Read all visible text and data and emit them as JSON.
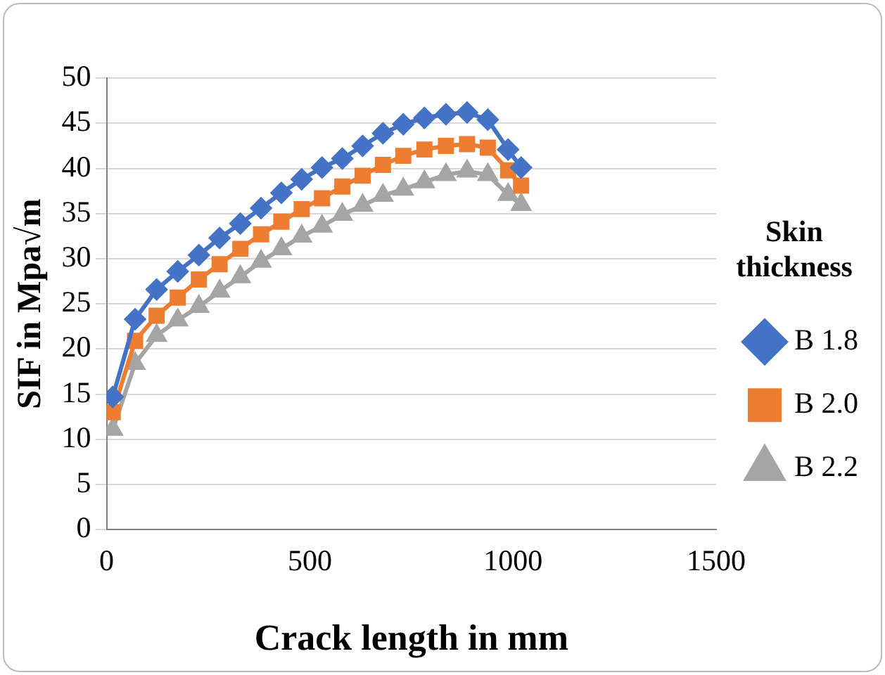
{
  "chart_data": {
    "type": "line",
    "xlabel": "Crack length in mm",
    "ylabel": "SIF in Mpa√m",
    "legend_title": "Skin thickness",
    "x": [
      15,
      70,
      123,
      175,
      227,
      278,
      329,
      380,
      430,
      480,
      530,
      580,
      630,
      680,
      730,
      782,
      835,
      887,
      938,
      988,
      1020
    ],
    "series": [
      {
        "name": "B 1.8",
        "color": "#4472c4",
        "marker": "diamond",
        "values": [
          14.7,
          23.3,
          26.6,
          28.6,
          30.4,
          32.3,
          33.9,
          35.6,
          37.3,
          38.8,
          40.1,
          41.1,
          42.5,
          43.9,
          44.9,
          45.6,
          46.0,
          46.2,
          45.4,
          42.1,
          40.1
        ]
      },
      {
        "name": "B 2.0",
        "color": "#ed7d31",
        "marker": "square",
        "values": [
          13.0,
          20.9,
          23.7,
          25.7,
          27.7,
          29.4,
          31.1,
          32.7,
          34.1,
          35.5,
          36.7,
          38.0,
          39.2,
          40.4,
          41.4,
          42.1,
          42.5,
          42.7,
          42.3,
          39.8,
          38.1
        ]
      },
      {
        "name": "B 2.2",
        "color": "#a5a5a5",
        "marker": "triangle",
        "values": [
          11.1,
          18.4,
          21.5,
          23.2,
          24.7,
          26.4,
          28.0,
          29.7,
          31.1,
          32.5,
          33.6,
          34.9,
          35.9,
          37.0,
          37.7,
          38.5,
          39.3,
          39.7,
          39.3,
          37.1,
          36.0
        ]
      }
    ],
    "xlim": [
      0,
      1500
    ],
    "xticks": [
      0,
      500,
      1000,
      1500
    ],
    "ylim": [
      0,
      50
    ],
    "yticks": [
      0,
      5,
      10,
      15,
      20,
      25,
      30,
      35,
      40,
      45,
      50
    ],
    "grid": "y",
    "legend": "right",
    "line_style": "solid"
  }
}
